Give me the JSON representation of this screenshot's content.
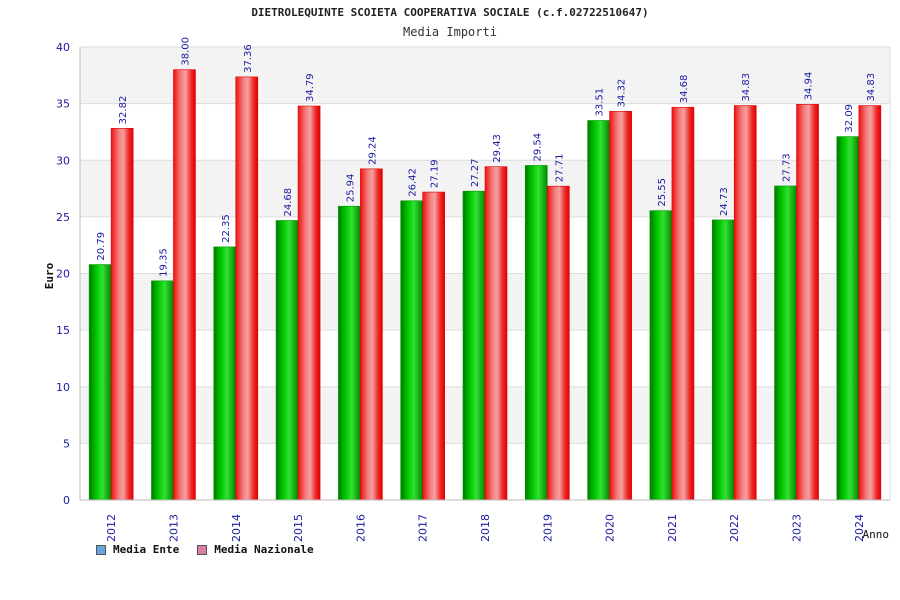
{
  "chart_data": {
    "type": "bar",
    "title": "DIETROLEQUINTE SCOIETA COOPERATIVA SOCIALE (c.f.02722510647)",
    "subtitle": "Media Importi",
    "ylabel": "Euro",
    "xlabel": "Anno",
    "ylim": [
      0,
      40
    ],
    "yticks": [
      0,
      5,
      10,
      15,
      20,
      25,
      30,
      35,
      40
    ],
    "grid": true,
    "legend_position": "bottom-left",
    "categories": [
      "2012",
      "2013",
      "2014",
      "2015",
      "2016",
      "2017",
      "2018",
      "2019",
      "2020",
      "2021",
      "2022",
      "2023",
      "2024"
    ],
    "series": [
      {
        "name": "Media Ente",
        "color": "#00bb00",
        "legend_color": "#66a3e0",
        "values": [
          20.79,
          19.35,
          22.35,
          24.68,
          25.94,
          26.42,
          27.27,
          29.54,
          33.51,
          25.55,
          24.73,
          27.73,
          32.09
        ],
        "labels": [
          "20.79",
          "19.35",
          "22.35",
          "24.68",
          "25.94",
          "26.42",
          "27.27",
          "29.54",
          "33.51",
          "25.55",
          "24.73",
          "27.73",
          "32.09"
        ]
      },
      {
        "name": "Media Nazionale",
        "color": "#ee1111",
        "legend_color": "#e07aa8",
        "values": [
          32.82,
          38.0,
          37.36,
          34.79,
          29.24,
          27.19,
          29.43,
          27.71,
          34.32,
          34.68,
          34.83,
          34.94,
          34.83
        ],
        "labels": [
          "32.82",
          "38.00",
          "37.36",
          "34.79",
          "29.24",
          "27.19",
          "29.43",
          "27.71",
          "34.32",
          "34.68",
          "34.83",
          "34.94",
          "34.83"
        ]
      }
    ]
  }
}
